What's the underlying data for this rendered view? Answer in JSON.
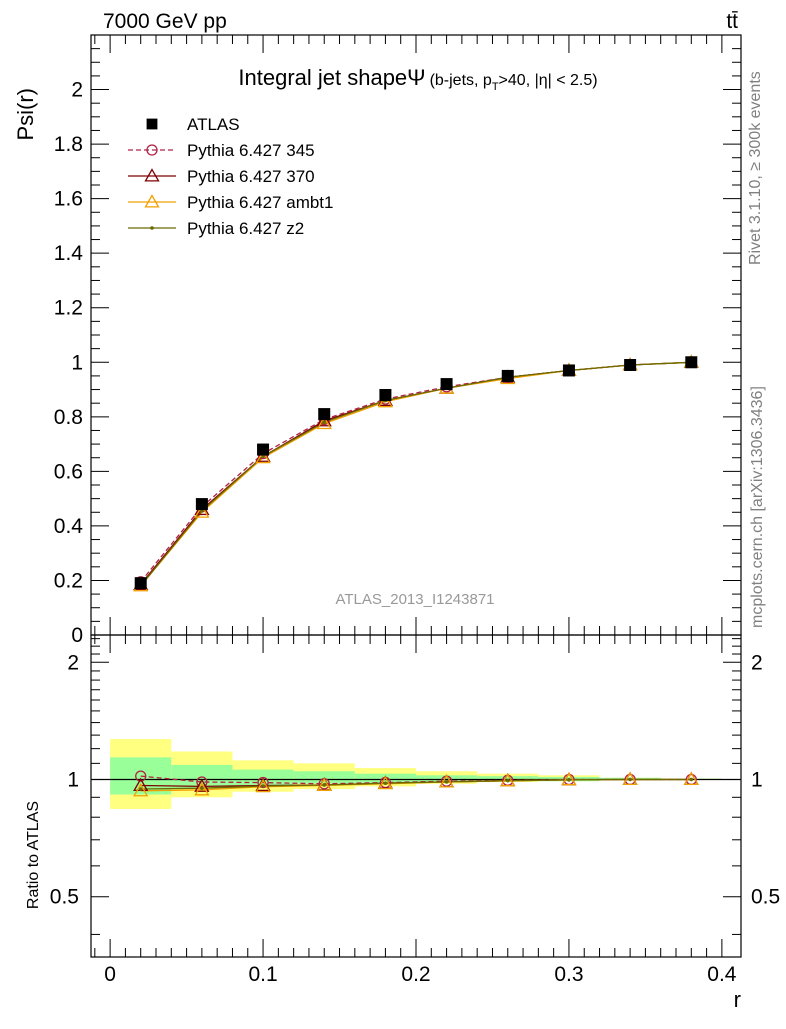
{
  "header": {
    "energy_label": "7000 GeV pp",
    "process_label": "tt̄"
  },
  "side_labels": {
    "rivet": "Rivet 3.1.10, ≥ 300k events",
    "mcplots": "mcplots.cern.ch [arXiv:1306.3436]"
  },
  "chart_data": [
    {
      "type": "scatter",
      "title": "Integral jet shape",
      "title_symbol": "Ψ",
      "subtitle": "(b-jets, p",
      "subtitle_sub": "T",
      "subtitle_tail": ">40, |η| < 2.5)",
      "watermark": "ATLAS_2013_I1243871",
      "ylabel": "Psi(r)",
      "xlabel": "",
      "xlim": [
        -0.0125,
        0.4125
      ],
      "ylim": [
        0,
        2.2
      ],
      "yticks": [
        0,
        0.2,
        0.4,
        0.6,
        0.8,
        1,
        1.2,
        1.4,
        1.6,
        1.8,
        2
      ],
      "ytick_labels": [
        "0",
        "0.2",
        "0.4",
        "0.6",
        "0.8",
        "1",
        "1.2",
        "1.4",
        "1.6",
        "1.8",
        "2"
      ],
      "legend_position": "top-left",
      "x": [
        0.02,
        0.06,
        0.1,
        0.14,
        0.18,
        0.22,
        0.26,
        0.3,
        0.34,
        0.38
      ],
      "series": [
        {
          "name": "ATLAS",
          "color": "#000000",
          "marker": "square",
          "values": [
            0.19,
            0.48,
            0.68,
            0.81,
            0.88,
            0.92,
            0.95,
            0.97,
            0.99,
            1.0
          ]
        },
        {
          "name": "Pythia 6.427 345",
          "color": "#b22244",
          "marker": "circle",
          "dash": true,
          "values": [
            0.195,
            0.47,
            0.665,
            0.79,
            0.865,
            0.91,
            0.945,
            0.97,
            0.99,
            1.0
          ]
        },
        {
          "name": "Pythia 6.427 370",
          "color": "#800000",
          "marker": "triangle",
          "values": [
            0.185,
            0.46,
            0.655,
            0.785,
            0.86,
            0.905,
            0.945,
            0.97,
            0.99,
            1.0
          ]
        },
        {
          "name": "Pythia 6.427 ambt1",
          "color": "#f0a000",
          "marker": "triangle",
          "values": [
            0.18,
            0.45,
            0.65,
            0.775,
            0.855,
            0.905,
            0.94,
            0.97,
            0.99,
            1.0
          ]
        },
        {
          "name": "Pythia 6.427 z2",
          "color": "#6b6b00",
          "marker": "dot",
          "values": [
            0.18,
            0.455,
            0.655,
            0.78,
            0.86,
            0.905,
            0.945,
            0.97,
            0.99,
            1.0
          ]
        }
      ]
    },
    {
      "type": "line",
      "ylabel": "Ratio to ATLAS",
      "xlabel": "r",
      "xlim": [
        -0.0125,
        0.4125
      ],
      "ylim": [
        0.35,
        2.35
      ],
      "log_y": true,
      "yticks": [
        0.5,
        1,
        2
      ],
      "ytick_labels": [
        "0.5",
        "1",
        "2"
      ],
      "xticks": [
        0,
        0.1,
        0.2,
        0.3,
        0.4
      ],
      "xtick_labels": [
        "0",
        "0.1",
        "0.2",
        "0.3",
        "0.4"
      ],
      "x": [
        0.02,
        0.06,
        0.1,
        0.14,
        0.18,
        0.22,
        0.26,
        0.3,
        0.34,
        0.38
      ],
      "bins": [
        [
          0,
          0.04
        ],
        [
          0.04,
          0.08
        ],
        [
          0.08,
          0.12
        ],
        [
          0.12,
          0.16
        ],
        [
          0.16,
          0.2
        ],
        [
          0.2,
          0.24
        ],
        [
          0.24,
          0.28
        ],
        [
          0.28,
          0.32
        ],
        [
          0.32,
          0.36
        ],
        [
          0.36,
          0.4
        ]
      ],
      "band_inner": [
        [
          0.915,
          1.14
        ],
        [
          0.95,
          1.09
        ],
        [
          0.965,
          1.06
        ],
        [
          0.975,
          1.05
        ],
        [
          0.98,
          1.035
        ],
        [
          0.985,
          1.025
        ],
        [
          0.99,
          1.02
        ],
        [
          0.99,
          1.015
        ],
        [
          0.995,
          1.01
        ],
        [
          0.997,
          1.005
        ]
      ],
      "band_outer": [
        [
          0.84,
          1.27
        ],
        [
          0.9,
          1.18
        ],
        [
          0.93,
          1.12
        ],
        [
          0.945,
          1.1
        ],
        [
          0.96,
          1.07
        ],
        [
          0.975,
          1.05
        ],
        [
          0.985,
          1.035
        ],
        [
          0.99,
          1.025
        ],
        [
          0.995,
          1.01
        ],
        [
          0.997,
          1.005
        ]
      ],
      "band_inner_color": "#99ff99",
      "band_outer_color": "#ffff80",
      "series": [
        {
          "name": "Pythia 6.427 345",
          "color": "#b22244",
          "marker": "circle",
          "dash": true,
          "values": [
            1.02,
            0.985,
            0.982,
            0.975,
            0.982,
            0.99,
            0.995,
            1.0,
            1.0,
            1.0
          ]
        },
        {
          "name": "Pythia 6.427 370",
          "color": "#800000",
          "marker": "triangle",
          "values": [
            0.965,
            0.96,
            0.965,
            0.968,
            0.978,
            0.985,
            0.993,
            0.998,
            1.0,
            1.0
          ]
        },
        {
          "name": "Pythia 6.427 ambt1",
          "color": "#f0a000",
          "marker": "triangle",
          "values": [
            0.935,
            0.94,
            0.958,
            0.965,
            0.975,
            0.985,
            0.992,
            0.998,
            1.0,
            1.0
          ]
        },
        {
          "name": "Pythia 6.427 z2",
          "color": "#6b6b00",
          "marker": "dot",
          "values": [
            0.945,
            0.95,
            0.962,
            0.968,
            0.978,
            0.986,
            0.993,
            0.998,
            1.0,
            1.0
          ]
        }
      ]
    }
  ]
}
